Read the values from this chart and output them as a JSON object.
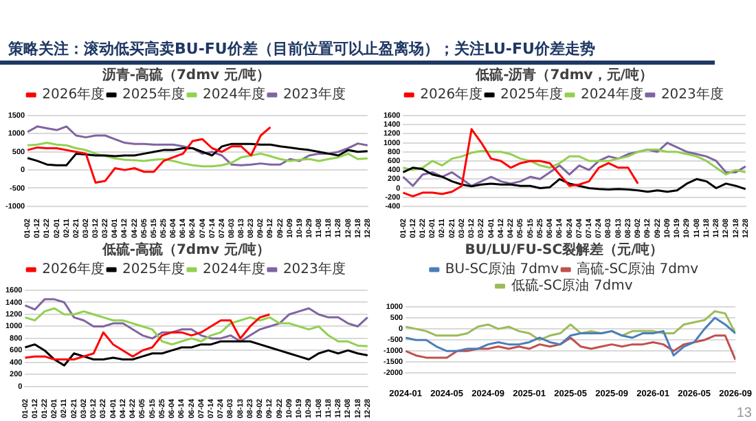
{
  "chart_data": [
    {
      "type": "other",
      "title": "策略关注：滚动低买高卖BU-FU价差（目前位置可以止盈离场）；关注LU-FU价差走势",
      "annotations": [
        "13"
      ]
    },
    {
      "type": "line",
      "title": "沥青-高硫（7dmv 元/吨）",
      "legend": "top",
      "grid": "y",
      "categories": [
        "01-02",
        "01-12",
        "01-22",
        "02-01",
        "02-11",
        "02-21",
        "03-02",
        "03-12",
        "03-22",
        "04-01",
        "04-12",
        "04-22",
        "05-05",
        "05-15",
        "05-25",
        "06-04",
        "06-14",
        "06-24",
        "07-04",
        "07-14",
        "07-24",
        "08-03",
        "08-13",
        "08-23",
        "09-02",
        "09-12",
        "09-22",
        "10-09",
        "10-19",
        "10-29",
        "11-08",
        "11-18",
        "11-28",
        "12-08",
        "12-18",
        "12-28"
      ],
      "ylim": [
        -1000,
        1500
      ],
      "yticks": [
        -1000,
        -500,
        0,
        500,
        1000,
        1500
      ],
      "series": [
        {
          "name": "2026年度",
          "color": "#ff0000",
          "values": [
            550,
            620,
            600,
            600,
            550,
            500,
            450,
            -350,
            -300,
            50,
            0,
            50,
            -50,
            -50,
            250,
            350,
            450,
            800,
            850,
            600,
            500,
            650,
            650,
            400,
            950,
            1180,
            null,
            null,
            null,
            null,
            null,
            null,
            null,
            null,
            null,
            null
          ]
        },
        {
          "name": "2025年度",
          "color": "#000000",
          "values": [
            330,
            250,
            150,
            130,
            130,
            450,
            430,
            400,
            400,
            380,
            400,
            400,
            450,
            500,
            550,
            550,
            600,
            600,
            500,
            400,
            650,
            720,
            720,
            720,
            700,
            700,
            650,
            620,
            580,
            550,
            500,
            450,
            400,
            550,
            500,
            520
          ]
        },
        {
          "name": "2024年度",
          "color": "#92d050",
          "values": [
            680,
            700,
            750,
            700,
            680,
            600,
            550,
            450,
            380,
            320,
            280,
            270,
            250,
            280,
            300,
            250,
            180,
            130,
            100,
            100,
            130,
            200,
            350,
            400,
            450,
            380,
            300,
            250,
            280,
            300,
            250,
            300,
            350,
            450,
            300,
            320
          ]
        },
        {
          "name": "2023年度",
          "color": "#8064a2",
          "values": [
            1050,
            1200,
            1150,
            1100,
            1200,
            950,
            900,
            950,
            950,
            850,
            750,
            720,
            720,
            700,
            700,
            700,
            650,
            600,
            450,
            500,
            400,
            150,
            130,
            150,
            180,
            150,
            150,
            300,
            250,
            400,
            450,
            450,
            500,
            600,
            730,
            680
          ]
        }
      ]
    },
    {
      "type": "line",
      "title": "低硫-沥青（7dmv，元/吨）",
      "legend": "top",
      "grid": "y",
      "categories": [
        "01-02",
        "01-12",
        "01-22",
        "02-01",
        "02-11",
        "02-21",
        "03-02",
        "03-12",
        "03-22",
        "04-01",
        "04-12",
        "04-22",
        "05-05",
        "05-15",
        "05-25",
        "06-04",
        "06-14",
        "06-24",
        "07-04",
        "07-14",
        "07-24",
        "08-03",
        "08-13",
        "08-23",
        "09-02",
        "09-12",
        "09-22",
        "10-09",
        "10-19",
        "10-29",
        "11-08",
        "11-18",
        "11-28",
        "12-08",
        "12-18",
        "12-28"
      ],
      "ylim": [
        -400,
        1600
      ],
      "yticks": [
        -400,
        -200,
        0,
        200,
        400,
        600,
        800,
        1000,
        1200,
        1400,
        1600
      ],
      "series": [
        {
          "name": "2026年度",
          "color": "#ff0000",
          "values": [
            -100,
            -180,
            -100,
            -100,
            -130,
            -80,
            50,
            1300,
            1000,
            650,
            600,
            450,
            550,
            600,
            600,
            550,
            300,
            50,
            80,
            150,
            450,
            550,
            450,
            450,
            100,
            null,
            null,
            null,
            null,
            null,
            null,
            null,
            null,
            null,
            null,
            null
          ]
        },
        {
          "name": "2025年度",
          "color": "#000000",
          "values": [
            350,
            450,
            420,
            300,
            250,
            150,
            80,
            40,
            80,
            100,
            80,
            80,
            50,
            50,
            0,
            20,
            200,
            100,
            50,
            0,
            -20,
            -30,
            -20,
            -30,
            -50,
            -80,
            -50,
            -80,
            -50,
            100,
            200,
            150,
            0,
            100,
            50,
            -20
          ]
        },
        {
          "name": "2024年度",
          "color": "#92d050",
          "values": [
            450,
            400,
            450,
            600,
            500,
            650,
            700,
            780,
            820,
            800,
            800,
            750,
            650,
            600,
            500,
            450,
            550,
            700,
            700,
            600,
            600,
            600,
            650,
            700,
            800,
            850,
            850,
            800,
            800,
            750,
            700,
            600,
            450,
            300,
            400,
            350
          ]
        },
        {
          "name": "2023年度",
          "color": "#8064a2",
          "values": [
            250,
            50,
            300,
            350,
            250,
            350,
            200,
            50,
            150,
            250,
            150,
            100,
            150,
            250,
            200,
            350,
            500,
            300,
            500,
            400,
            600,
            700,
            650,
            750,
            800,
            850,
            800,
            1000,
            900,
            800,
            750,
            700,
            600,
            350,
            350,
            480
          ]
        }
      ]
    },
    {
      "type": "line",
      "title": "低硫-高硫（7dmv 元/吨）",
      "legend": "top",
      "grid": "y",
      "categories": [
        "01-02",
        "01-12",
        "01-22",
        "02-01",
        "02-11",
        "02-21",
        "03-02",
        "03-12",
        "03-22",
        "04-01",
        "04-12",
        "04-22",
        "05-05",
        "05-15",
        "05-25",
        "06-04",
        "06-14",
        "06-24",
        "07-04",
        "07-14",
        "07-24",
        "08-03",
        "08-13",
        "08-23",
        "09-02",
        "09-12",
        "09-22",
        "10-09",
        "10-19",
        "10-29",
        "11-08",
        "11-18",
        "11-28",
        "12-08",
        "12-18",
        "12-28"
      ],
      "ylim": [
        0,
        1600
      ],
      "yticks": [
        0,
        200,
        400,
        600,
        800,
        1000,
        1200,
        1400,
        1600
      ],
      "series": [
        {
          "name": "2026年度",
          "color": "#ff0000",
          "values": [
            480,
            500,
            500,
            450,
            450,
            450,
            500,
            550,
            900,
            700,
            600,
            500,
            600,
            650,
            850,
            900,
            900,
            850,
            900,
            1000,
            1100,
            1100,
            800,
            1000,
            1150,
            1200,
            null,
            null,
            null,
            null,
            null,
            null,
            null,
            null,
            null,
            null
          ]
        },
        {
          "name": "2025年度",
          "color": "#000000",
          "values": [
            650,
            700,
            600,
            450,
            350,
            550,
            500,
            450,
            450,
            480,
            450,
            450,
            500,
            550,
            550,
            600,
            650,
            650,
            700,
            700,
            750,
            750,
            750,
            750,
            700,
            650,
            600,
            550,
            500,
            450,
            550,
            600,
            550,
            600,
            550,
            520
          ]
        },
        {
          "name": "2024年度",
          "color": "#92d050",
          "values": [
            1150,
            1100,
            1250,
            1300,
            1200,
            1200,
            1250,
            1200,
            1150,
            1100,
            1100,
            1050,
            1000,
            950,
            750,
            700,
            750,
            800,
            750,
            850,
            900,
            1050,
            1100,
            1150,
            1100,
            1150,
            1050,
            1050,
            1000,
            950,
            1000,
            850,
            750,
            750,
            680,
            670
          ]
        },
        {
          "name": "2023年度",
          "color": "#8064a2",
          "values": [
            1350,
            1280,
            1450,
            1450,
            1400,
            1150,
            1100,
            1000,
            1000,
            1050,
            1050,
            950,
            850,
            800,
            900,
            900,
            950,
            950,
            850,
            800,
            800,
            850,
            750,
            850,
            950,
            1000,
            1050,
            1200,
            1250,
            1300,
            1200,
            1150,
            1150,
            1050,
            1000,
            1150
          ]
        }
      ]
    },
    {
      "type": "line",
      "title": "BU/LU/FU-SC裂解差（元/吨）",
      "legend": "top",
      "grid": "y",
      "x": [
        "2024-01",
        "2024-02",
        "2024-03",
        "2024-04",
        "2024-05",
        "2024-06",
        "2024-07",
        "2024-08",
        "2024-09",
        "2024-10",
        "2024-11",
        "2024-12",
        "2025-01",
        "2025-02",
        "2025-03",
        "2025-04",
        "2025-05",
        "2025-06",
        "2025-07",
        "2025-08",
        "2025-09",
        "2025-10",
        "2025-11",
        "2025-12",
        "2026-01",
        "2026-02",
        "2026-03",
        "2026-04",
        "2026-05",
        "2026-06",
        "2026-07",
        "2026-08",
        "2026-09"
      ],
      "xlim": [
        "2024-01",
        "2026-09"
      ],
      "xticks": [
        "2024-01",
        "2024-05",
        "2024-09",
        "2025-01",
        "2025-05",
        "2025-09",
        "2026-01",
        "2026-05",
        "2026-09"
      ],
      "ylim": [
        -2000,
        1000
      ],
      "yticks": [
        -2000,
        -1500,
        -1000,
        -500,
        0,
        500,
        1000
      ],
      "series": [
        {
          "name": "BU-SC原油 7dmv",
          "color": "#4a7ebb",
          "values": [
            -400,
            -500,
            -500,
            -800,
            -1000,
            -1000,
            -900,
            -900,
            -700,
            -600,
            -700,
            -700,
            -600,
            -400,
            -600,
            -700,
            -300,
            -200,
            -200,
            -200,
            -100,
            -300,
            -400,
            -200,
            -200,
            -100,
            -1200,
            -800,
            -600,
            0,
            500,
            200,
            -200
          ]
        },
        {
          "name": "高硫-SC原油 7dmv",
          "color": "#c0504d",
          "values": [
            -1000,
            -1200,
            -1300,
            -1300,
            -1300,
            -1000,
            -1000,
            -900,
            -900,
            -800,
            -900,
            -800,
            -900,
            -700,
            -800,
            -700,
            -400,
            -800,
            -900,
            -800,
            -700,
            -800,
            -700,
            -700,
            -600,
            -700,
            -1000,
            -700,
            -600,
            -500,
            -300,
            -300,
            -1400
          ]
        },
        {
          "name": "低硫-SC原油 7dmv",
          "color": "#9bbb59",
          "values": [
            100,
            0,
            -100,
            -300,
            -300,
            -300,
            -200,
            100,
            200,
            0,
            100,
            -100,
            -200,
            -500,
            -300,
            -200,
            200,
            -200,
            -100,
            -200,
            -100,
            -300,
            -100,
            -100,
            -100,
            -200,
            -200,
            200,
            300,
            400,
            800,
            700,
            -200
          ]
        }
      ]
    }
  ]
}
